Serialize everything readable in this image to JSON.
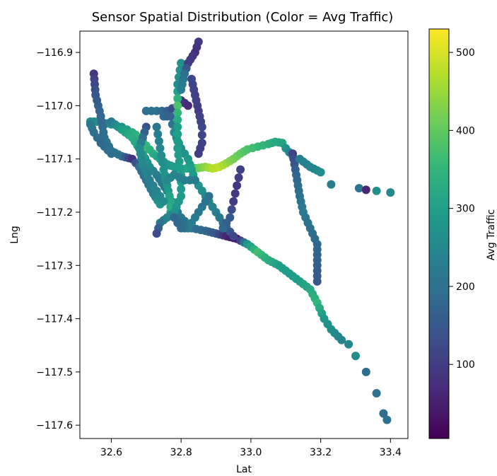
{
  "chart_data": {
    "type": "scatter",
    "title": "Sensor Spatial Distribution (Color = Avg Traffic)",
    "xlabel": "Lat",
    "ylabel": "Lng",
    "xlim": [
      32.51,
      33.45
    ],
    "ylim": [
      -117.625,
      -116.86
    ],
    "xticks": [
      32.6,
      32.8,
      33.0,
      33.2,
      33.4
    ],
    "xtick_labels": [
      "32.6",
      "32.8",
      "33.0",
      "33.2",
      "33.4"
    ],
    "yticks": [
      -116.9,
      -117.0,
      -117.1,
      -117.2,
      -117.3,
      -117.4,
      -117.5,
      -117.6
    ],
    "ytick_labels": [
      "−116.9",
      "−117.0",
      "−117.1",
      "−117.2",
      "−117.3",
      "−117.4",
      "−117.5",
      "−117.6"
    ],
    "grid": false,
    "colormap": "viridis",
    "colorbar": {
      "label": "Avg Traffic",
      "range": [
        5,
        530
      ],
      "ticks": [
        100,
        200,
        300,
        400,
        500
      ],
      "tick_labels": [
        "100",
        "200",
        "300",
        "400",
        "500"
      ]
    },
    "paths": [
      {
        "points": [
          [
            32.54,
            -117.03,
            260
          ],
          [
            32.56,
            -117.03,
            255
          ],
          [
            32.6,
            -117.035,
            250
          ],
          [
            32.63,
            -117.04,
            270
          ],
          [
            32.66,
            -117.05,
            330
          ],
          [
            32.68,
            -117.06,
            350
          ],
          [
            32.7,
            -117.075,
            355
          ],
          [
            32.72,
            -117.09,
            330
          ],
          [
            32.74,
            -117.1,
            300
          ],
          [
            32.76,
            -117.11,
            280
          ],
          [
            32.78,
            -117.115,
            290
          ],
          [
            32.8,
            -117.118,
            300
          ],
          [
            32.83,
            -117.118,
            330
          ],
          [
            32.85,
            -117.117,
            410
          ],
          [
            32.87,
            -117.115,
            440
          ],
          [
            32.89,
            -117.118,
            470
          ],
          [
            32.91,
            -117.115,
            480
          ],
          [
            32.93,
            -117.108,
            450
          ],
          [
            32.95,
            -117.1,
            420
          ],
          [
            32.97,
            -117.09,
            400
          ],
          [
            32.99,
            -117.082,
            380
          ],
          [
            33.02,
            -117.077,
            360
          ],
          [
            33.05,
            -117.072,
            340
          ],
          [
            33.07,
            -117.068,
            320
          ],
          [
            33.09,
            -117.07,
            310
          ],
          [
            33.1,
            -117.08,
            270
          ],
          [
            33.12,
            -117.095,
            220
          ]
        ],
        "step": 0.013
      },
      {
        "points": [
          [
            32.55,
            -116.94,
            90
          ],
          [
            32.555,
            -116.98,
            150
          ],
          [
            32.57,
            -117.02,
            180
          ],
          [
            32.58,
            -117.06,
            200
          ],
          [
            32.6,
            -117.085,
            210
          ],
          [
            32.63,
            -117.095,
            200
          ],
          [
            32.66,
            -117.1,
            80
          ],
          [
            32.68,
            -117.115,
            200
          ],
          [
            32.7,
            -117.14,
            210
          ],
          [
            32.72,
            -117.165,
            230
          ],
          [
            32.74,
            -117.185,
            280
          ]
        ],
        "step": 0.011
      },
      {
        "points": [
          [
            32.54,
            -117.035,
            220
          ],
          [
            32.55,
            -117.05,
            200
          ],
          [
            32.57,
            -117.07,
            180
          ],
          [
            32.6,
            -117.09,
            200
          ]
        ],
        "step": 0.012
      },
      {
        "points": [
          [
            32.6,
            -117.03,
            220
          ],
          [
            32.63,
            -117.045,
            300
          ],
          [
            32.66,
            -117.06,
            330
          ],
          [
            32.69,
            -117.09,
            300
          ],
          [
            32.71,
            -117.115,
            260
          ],
          [
            32.73,
            -117.13,
            230
          ],
          [
            32.76,
            -117.16,
            210
          ],
          [
            32.78,
            -117.19,
            220
          ],
          [
            32.8,
            -117.21,
            210
          ],
          [
            32.83,
            -117.23,
            200
          ],
          [
            32.87,
            -117.235,
            180
          ],
          [
            32.9,
            -117.24,
            150
          ],
          [
            32.93,
            -117.245,
            60
          ],
          [
            32.96,
            -117.25,
            30
          ],
          [
            32.99,
            -117.26,
            280
          ],
          [
            33.02,
            -117.275,
            370
          ],
          [
            33.05,
            -117.29,
            330
          ],
          [
            33.08,
            -117.3,
            300
          ],
          [
            33.11,
            -117.315,
            290
          ],
          [
            33.14,
            -117.33,
            300
          ],
          [
            33.17,
            -117.345,
            320
          ],
          [
            33.19,
            -117.37,
            350
          ],
          [
            33.21,
            -117.4,
            280
          ],
          [
            33.23,
            -117.42,
            260
          ],
          [
            33.26,
            -117.44,
            240
          ]
        ],
        "step": 0.012
      },
      {
        "points": [
          [
            32.7,
            -117.01,
            200
          ],
          [
            32.73,
            -117.01,
            210
          ],
          [
            32.76,
            -117.01,
            160
          ],
          [
            32.79,
            -117.0,
            90
          ],
          [
            32.8,
            -116.99,
            80
          ],
          [
            32.82,
            -117.0,
            70
          ]
        ],
        "step": 0.013
      },
      {
        "points": [
          [
            32.75,
            -117.02,
            180
          ],
          [
            32.77,
            -117.02,
            170
          ],
          [
            32.78,
            -117.05,
            250
          ],
          [
            32.8,
            -117.08,
            260
          ],
          [
            32.82,
            -117.1,
            280
          ],
          [
            32.83,
            -117.12,
            300
          ],
          [
            32.84,
            -117.14,
            280
          ],
          [
            32.86,
            -117.16,
            270
          ],
          [
            32.88,
            -117.18,
            250
          ],
          [
            32.9,
            -117.2,
            230
          ],
          [
            32.92,
            -117.22,
            200
          ],
          [
            32.95,
            -117.245,
            120
          ]
        ],
        "step": 0.013
      },
      {
        "points": [
          [
            32.83,
            -116.95,
            120
          ],
          [
            32.84,
            -116.98,
            110
          ],
          [
            32.85,
            -117.01,
            100
          ],
          [
            32.86,
            -117.04,
            120
          ],
          [
            32.86,
            -117.07,
            110
          ],
          [
            32.85,
            -117.09,
            100
          ]
        ],
        "step": 0.012
      },
      {
        "points": [
          [
            32.73,
            -117.04,
            210
          ],
          [
            32.74,
            -117.08,
            250
          ],
          [
            32.75,
            -117.12,
            270
          ],
          [
            32.76,
            -117.15,
            280
          ],
          [
            32.77,
            -117.18,
            320
          ],
          [
            32.77,
            -117.2,
            330
          ]
        ],
        "step": 0.012
      },
      {
        "points": [
          [
            32.8,
            -116.92,
            270
          ],
          [
            32.79,
            -116.96,
            260
          ],
          [
            32.79,
            -117.0,
            380
          ],
          [
            32.79,
            -117.04,
            300
          ],
          [
            32.79,
            -117.08,
            290
          ],
          [
            32.8,
            -117.13,
            300
          ],
          [
            32.8,
            -117.17,
            290
          ],
          [
            32.78,
            -117.2,
            270
          ],
          [
            32.76,
            -117.21,
            250
          ],
          [
            32.74,
            -117.22,
            210
          ],
          [
            32.73,
            -117.24,
            130
          ]
        ],
        "step": 0.012
      },
      {
        "points": [
          [
            32.7,
            -117.04,
            140
          ],
          [
            32.68,
            -117.08,
            260
          ],
          [
            32.69,
            -117.11,
            250
          ],
          [
            32.71,
            -117.14,
            230
          ],
          [
            32.73,
            -117.16,
            240
          ],
          [
            32.75,
            -117.18,
            260
          ]
        ],
        "step": 0.012
      },
      {
        "points": [
          [
            32.85,
            -116.88,
            90
          ],
          [
            32.84,
            -116.9,
            80
          ],
          [
            32.82,
            -116.92,
            100
          ],
          [
            32.81,
            -116.94,
            200
          ],
          [
            32.8,
            -116.97,
            230
          ]
        ],
        "step": 0.01
      },
      {
        "points": [
          [
            32.97,
            -117.12,
            110
          ],
          [
            32.96,
            -117.15,
            90
          ],
          [
            32.95,
            -117.18,
            100
          ],
          [
            32.94,
            -117.21,
            150
          ],
          [
            32.92,
            -117.23,
            180
          ]
        ],
        "step": 0.013
      },
      {
        "points": [
          [
            32.88,
            -117.17,
            200
          ],
          [
            32.86,
            -117.19,
            210
          ],
          [
            32.84,
            -117.21,
            220
          ],
          [
            32.82,
            -117.23,
            230
          ],
          [
            32.8,
            -117.23,
            190
          ],
          [
            32.78,
            -117.21,
            180
          ]
        ],
        "step": 0.013
      },
      {
        "points": [
          [
            33.12,
            -117.09,
            110
          ],
          [
            33.13,
            -117.13,
            180
          ],
          [
            33.14,
            -117.17,
            200
          ],
          [
            33.15,
            -117.2,
            220
          ],
          [
            33.17,
            -117.23,
            200
          ],
          [
            33.19,
            -117.26,
            180
          ],
          [
            33.19,
            -117.29,
            170
          ],
          [
            33.19,
            -117.33,
            150
          ]
        ],
        "step": 0.011
      },
      {
        "points": [
          [
            33.14,
            -117.1,
            230
          ],
          [
            33.17,
            -117.115,
            240
          ],
          [
            33.2,
            -117.125,
            260
          ]
        ],
        "step": 0.012
      },
      {
        "points": [
          [
            32.84,
            -117.14,
            220
          ],
          [
            32.81,
            -117.14,
            230
          ],
          [
            32.78,
            -117.13,
            240
          ],
          [
            32.76,
            -117.14,
            250
          ]
        ],
        "step": 0.013
      }
    ],
    "points": [
      [
        33.23,
        -117.148,
        230
      ],
      [
        33.31,
        -117.155,
        210
      ],
      [
        33.33,
        -117.158,
        60
      ],
      [
        33.36,
        -117.16,
        270
      ],
      [
        33.4,
        -117.163,
        250
      ],
      [
        33.28,
        -117.448,
        250
      ],
      [
        33.3,
        -117.47,
        260
      ],
      [
        33.33,
        -117.5,
        190
      ],
      [
        33.36,
        -117.54,
        200
      ],
      [
        33.38,
        -117.578,
        190
      ],
      [
        33.39,
        -117.59,
        200
      ]
    ],
    "colorbar_stops": [
      "#440154",
      "#482878",
      "#3e4989",
      "#31688e",
      "#26828e",
      "#1f9e89",
      "#35b779",
      "#6ece58",
      "#b5de2b",
      "#fde725"
    ]
  }
}
